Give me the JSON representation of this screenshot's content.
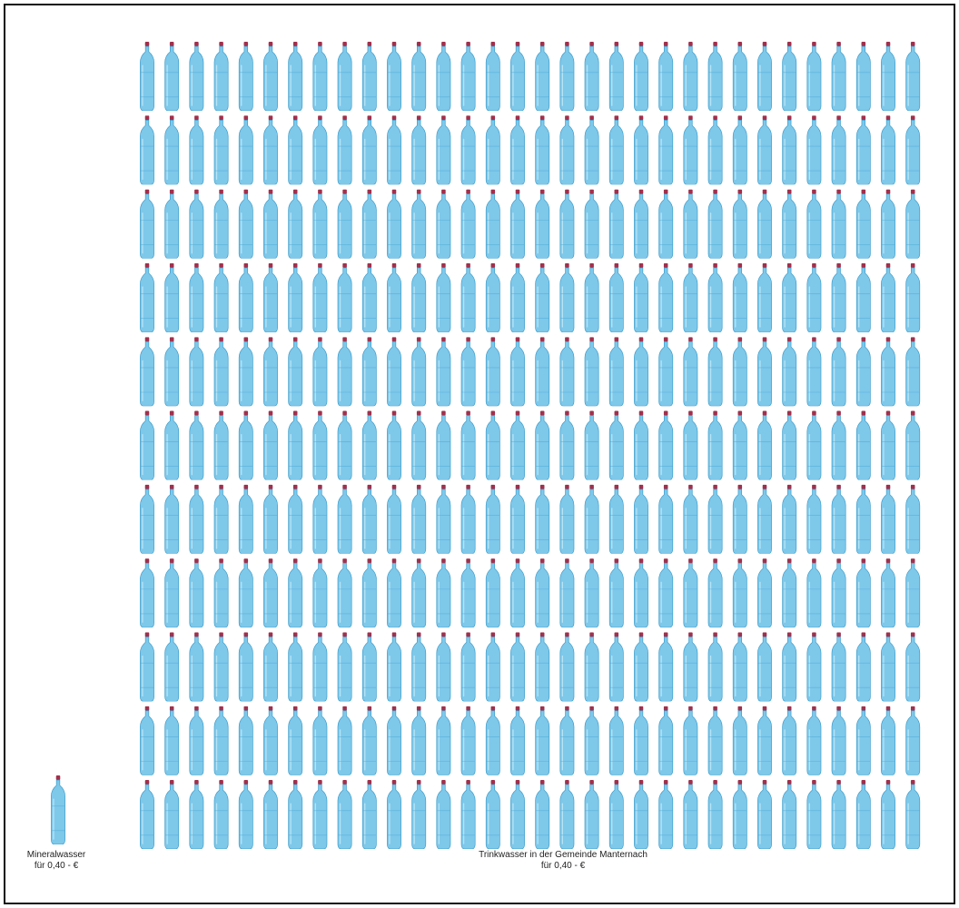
{
  "chart_data": {
    "type": "pictogram",
    "unit_icon": "water-bottle-icon",
    "series": [
      {
        "name": "Mineralwasser",
        "price": "für 0,40 - €",
        "count": 1
      },
      {
        "name": "Trinkwasser in der Gemeinde Manternach",
        "price": "für 0,40 - €",
        "count": 352,
        "rows": 11,
        "columns": 32
      }
    ]
  },
  "labels": {
    "single_name": "Mineralwasser",
    "single_price": "für 0,40 - €",
    "grid_name": "Trinkwasser in der Gemeinde Manternach",
    "grid_price": "für 0,40 - €"
  },
  "colors": {
    "bottle_fill": "#7ec8ea",
    "bottle_stroke": "#3d9cc9",
    "cap": "#a0304c"
  }
}
